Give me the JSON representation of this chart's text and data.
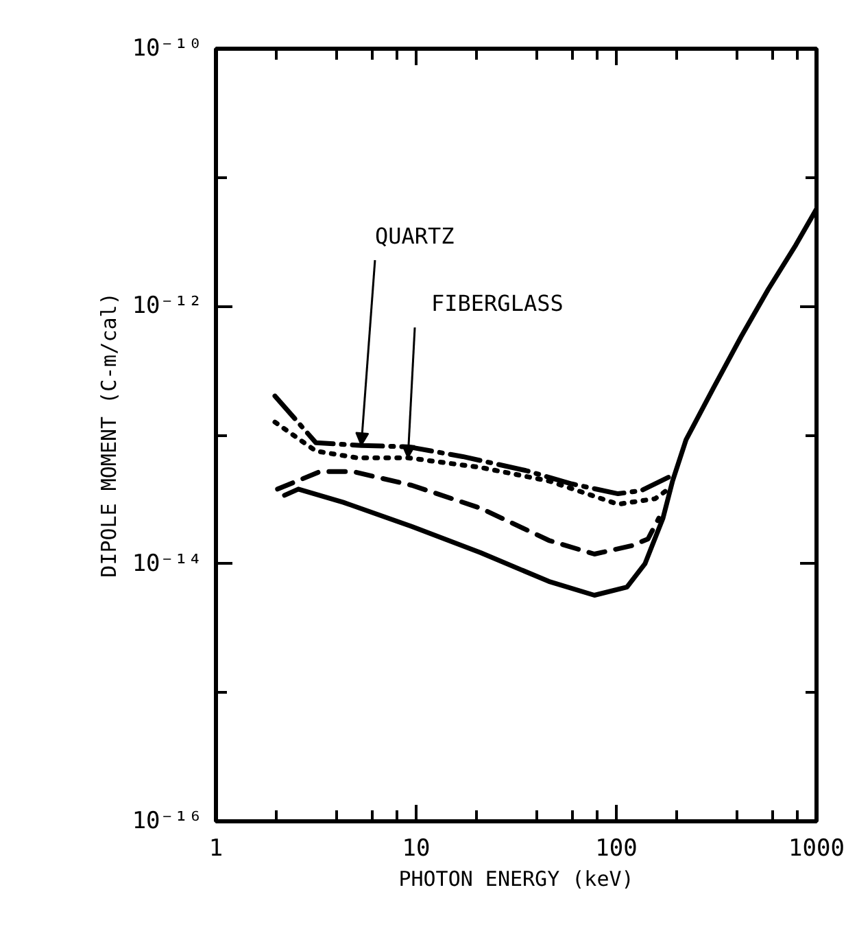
{
  "chart_data": {
    "type": "line",
    "xlabel": "PHOTON ENERGY (keV)",
    "ylabel": "DIPOLE MOMENT (C-m/cal)",
    "log": "xy",
    "grid": false,
    "xlim": [
      1,
      1000
    ],
    "ylim": [
      1e-16,
      1e-10
    ],
    "xticks": [
      1,
      {
        "value": 2,
        "label": null
      },
      {
        "value": 4,
        "label": null
      },
      {
        "value": 6,
        "label": null
      },
      {
        "value": 8,
        "label": null
      },
      10,
      {
        "value": 20,
        "label": null
      },
      {
        "value": 40,
        "label": null
      },
      {
        "value": 60,
        "label": null
      },
      {
        "value": 80,
        "label": null
      },
      100,
      {
        "value": 200,
        "label": null
      },
      {
        "value": 400,
        "label": null
      },
      {
        "value": 600,
        "label": null
      },
      {
        "value": 800,
        "label": null
      },
      1000
    ],
    "yticks": [
      {
        "value": 1e-16,
        "label": "10⁻¹⁶"
      },
      {
        "value": 1e-15,
        "label": null
      },
      {
        "value": 1e-14,
        "label": "10⁻¹⁴"
      },
      {
        "value": 1e-13,
        "label": null
      },
      {
        "value": 1e-12,
        "label": "10⁻¹²"
      },
      {
        "value": 1e-11,
        "label": null
      },
      {
        "value": 1e-10,
        "label": "10⁻¹⁰"
      }
    ],
    "series": [
      {
        "color": "#000000",
        "line_style": "dashdot",
        "x": [
          1.97,
          3.16,
          5.32,
          9.1,
          17.1,
          35.3,
          60,
          102,
          133,
          182
        ],
        "values": [
          2.01e-13,
          8.7e-14,
          8.3e-14,
          8.1e-14,
          6.8e-14,
          5.3e-14,
          4.17e-14,
          3.5e-14,
          3.7e-14,
          4.7e-14
        ]
      },
      {
        "color": "#000000",
        "line_style": "dotted",
        "x": [
          1.97,
          3.16,
          5.08,
          9.1,
          21,
          46,
          102,
          156,
          182
        ],
        "values": [
          1.26e-13,
          7.5e-14,
          6.65e-14,
          6.65e-14,
          5.6e-14,
          4.4e-14,
          2.9e-14,
          3.2e-14,
          3.8e-14
        ]
      },
      {
        "color": "#000000",
        "line_style": "dashed",
        "x": [
          2.03,
          3.31,
          4.84,
          9.5,
          21,
          46,
          77.7,
          119,
          144,
          163
        ],
        "values": [
          3.8e-14,
          5.2e-14,
          5.2e-14,
          4.07e-14,
          2.7e-14,
          1.52e-14,
          1.19e-14,
          1.38e-14,
          1.56e-14,
          2.26e-14
        ]
      },
      {
        "color": "#000000",
        "line_style": "solid",
        "x": [
          2.2,
          2.58,
          4.33,
          9.5,
          21,
          46,
          77.7,
          113,
          139,
          171,
          191,
          223,
          306,
          420,
          575,
          789,
          1000
        ],
        "values": [
          3.4e-14,
          3.8e-14,
          3e-14,
          1.95e-14,
          1.22e-14,
          7.3e-15,
          5.7e-15,
          6.6e-15,
          1e-14,
          2.26e-14,
          4.4e-14,
          9.2e-14,
          2.33e-13,
          5.8e-13,
          1.36e-12,
          3e-12,
          5.7e-12
        ]
      }
    ],
    "annotations": [
      {
        "text": "QUARTZ",
        "x": 5.32,
        "y": 8.3e-14
      },
      {
        "text": "FIBERGLASS",
        "x": 9.1,
        "y": 6.65e-14
      }
    ]
  }
}
